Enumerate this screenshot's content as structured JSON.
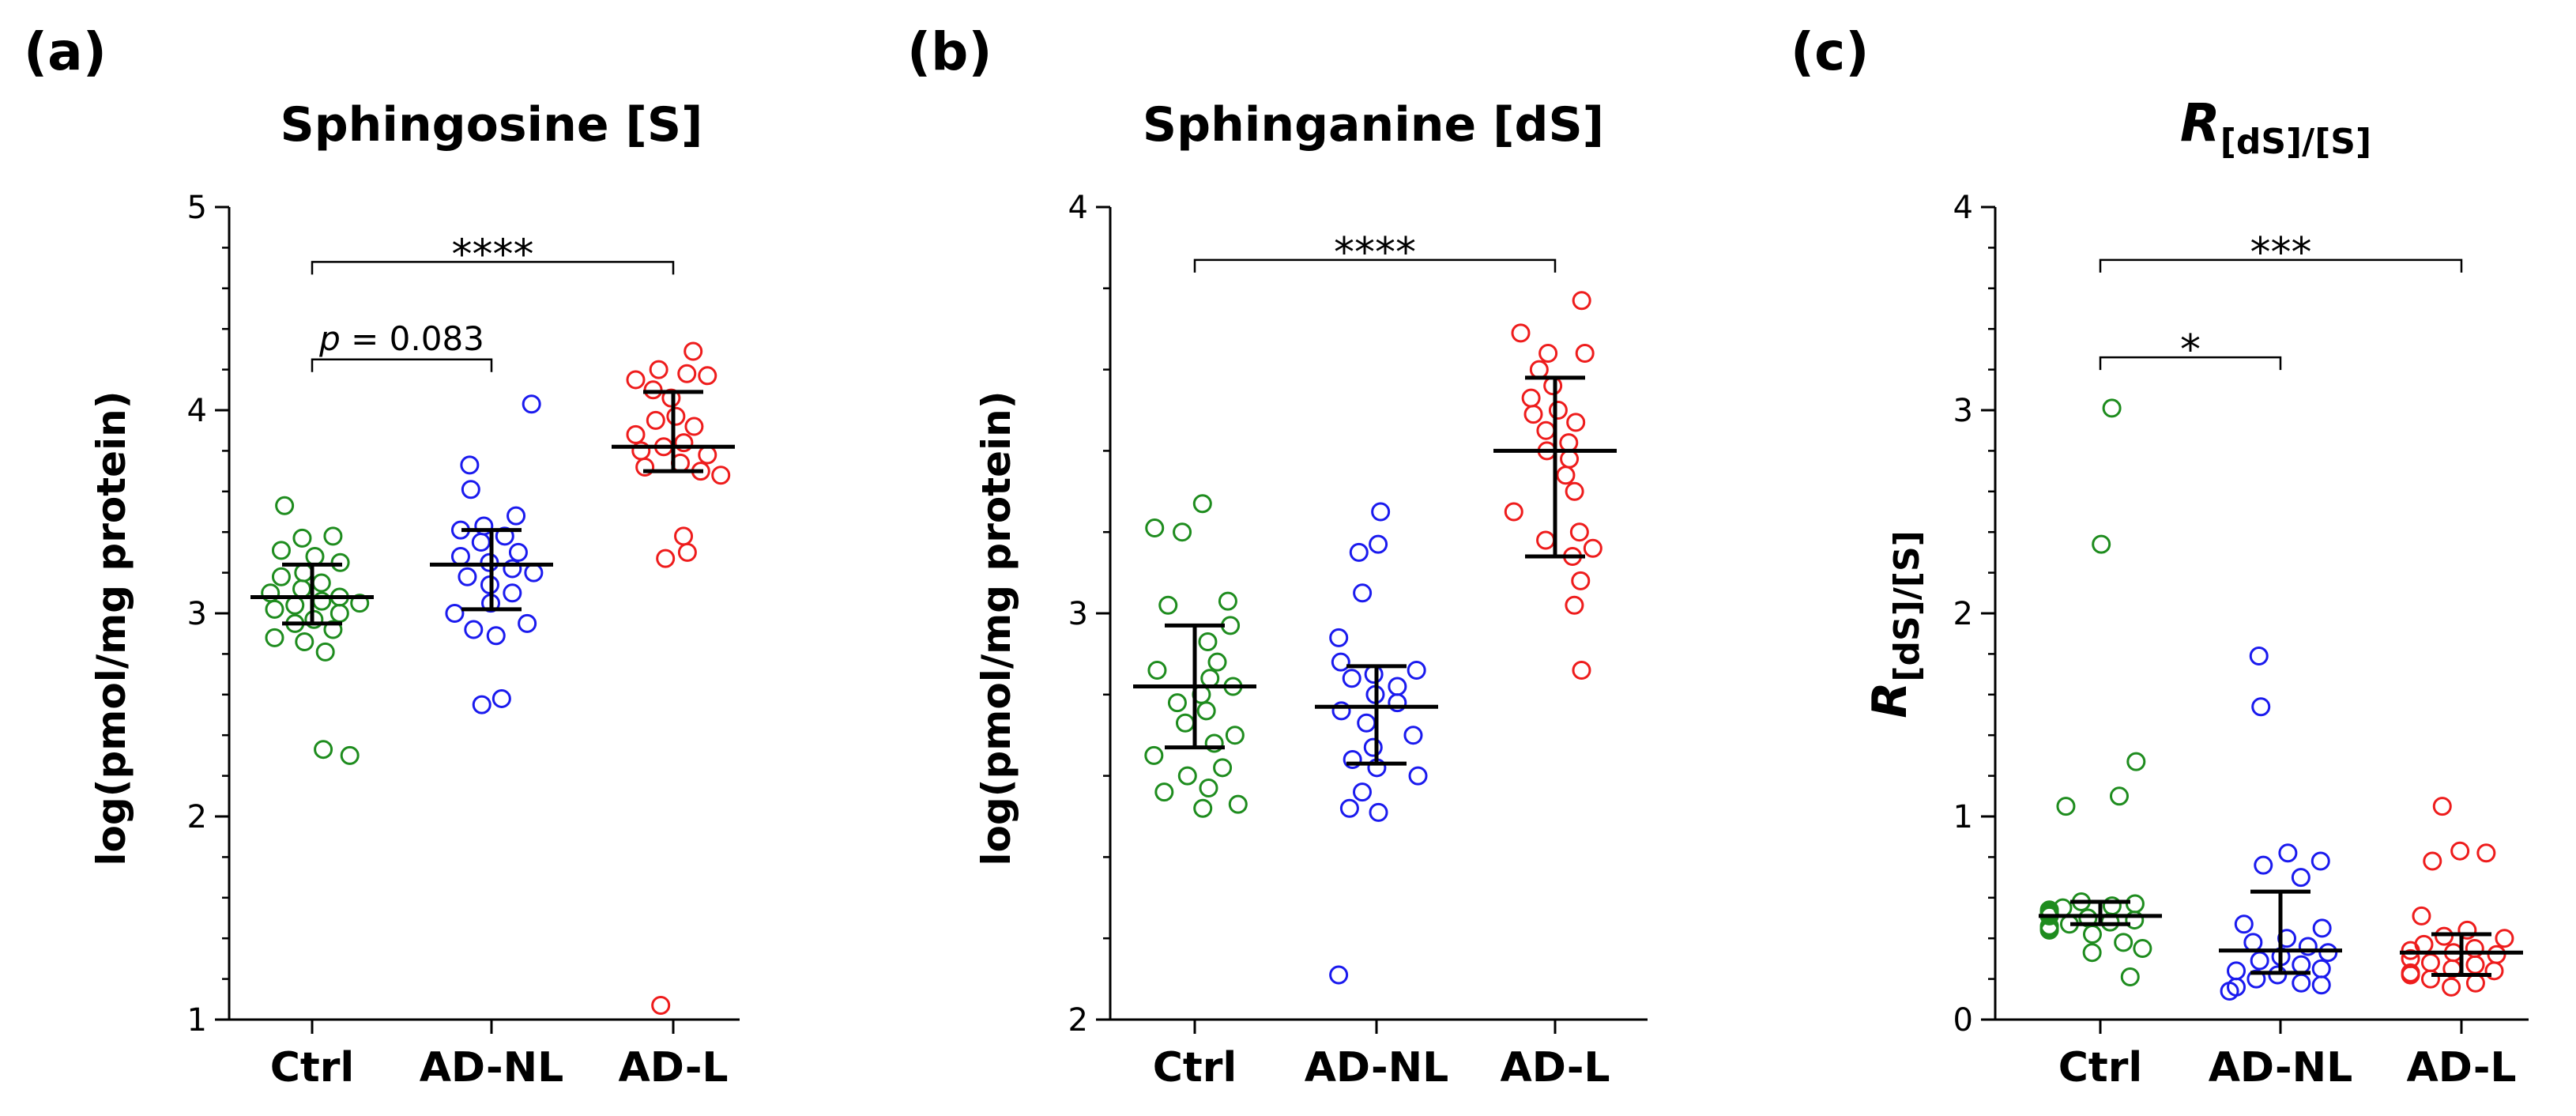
{
  "colors": {
    "ctrl": "#1e8c1e",
    "adnl": "#1a1aee",
    "adl": "#ee1c1c",
    "axis": "#000000"
  },
  "chart_data": [
    {
      "type": "scatter",
      "panel_label": "(a)",
      "title": "Sphingosine [S]",
      "ylabel": "log(pmol/mg protein)",
      "ylim": [
        1,
        5
      ],
      "yticks": [
        1,
        2,
        3,
        4,
        5
      ],
      "categories": [
        "Ctrl",
        "AD-NL",
        "AD-L"
      ],
      "series": [
        {
          "name": "Ctrl",
          "color": "ctrl",
          "values": [
            3.53,
            3.38,
            3.37,
            3.31,
            3.28,
            3.25,
            3.2,
            3.18,
            3.15,
            3.12,
            3.1,
            3.08,
            3.06,
            3.05,
            3.04,
            3.02,
            3.0,
            2.97,
            2.95,
            2.92,
            2.88,
            2.86,
            2.81,
            2.33,
            2.3
          ],
          "median": 3.08,
          "q1": 2.95,
          "q3": 3.24
        },
        {
          "name": "AD-NL",
          "color": "adnl",
          "values": [
            4.03,
            3.73,
            3.61,
            3.48,
            3.43,
            3.41,
            3.38,
            3.35,
            3.3,
            3.28,
            3.25,
            3.22,
            3.2,
            3.18,
            3.14,
            3.1,
            3.05,
            3.0,
            2.95,
            2.92,
            2.89,
            2.58,
            2.55
          ],
          "median": 3.24,
          "q1": 3.02,
          "q3": 3.41
        },
        {
          "name": "AD-L",
          "color": "adl",
          "values": [
            4.29,
            4.2,
            4.18,
            4.17,
            4.15,
            4.1,
            4.06,
            3.97,
            3.95,
            3.92,
            3.88,
            3.84,
            3.82,
            3.8,
            3.78,
            3.74,
            3.72,
            3.7,
            3.68,
            3.38,
            3.3,
            3.27,
            1.07
          ],
          "median": 3.82,
          "q1": 3.7,
          "q3": 4.09
        }
      ],
      "brackets": [
        {
          "from": 0,
          "to": 2,
          "y": 4.73,
          "label": "****",
          "italic_p": false
        },
        {
          "from": 0,
          "to": 1,
          "y": 4.25,
          "label": "p = 0.083",
          "italic_p": true
        }
      ]
    },
    {
      "type": "scatter",
      "panel_label": "(b)",
      "title": "Sphinganine [dS]",
      "ylabel": "log(pmol/mg protein)",
      "ylim": [
        2,
        4
      ],
      "yticks": [
        2,
        3,
        4
      ],
      "categories": [
        "Ctrl",
        "AD-NL",
        "AD-L"
      ],
      "series": [
        {
          "name": "Ctrl",
          "color": "ctrl",
          "values": [
            3.27,
            3.21,
            3.2,
            3.03,
            3.02,
            2.97,
            2.93,
            2.88,
            2.86,
            2.84,
            2.82,
            2.8,
            2.78,
            2.76,
            2.73,
            2.7,
            2.68,
            2.65,
            2.62,
            2.6,
            2.57,
            2.56,
            2.53,
            2.52
          ],
          "median": 2.82,
          "q1": 2.67,
          "q3": 2.97
        },
        {
          "name": "AD-NL",
          "color": "adnl",
          "values": [
            3.25,
            3.17,
            3.15,
            3.05,
            2.94,
            2.88,
            2.86,
            2.85,
            2.84,
            2.82,
            2.8,
            2.78,
            2.76,
            2.73,
            2.7,
            2.67,
            2.64,
            2.62,
            2.6,
            2.56,
            2.52,
            2.51,
            2.11
          ],
          "median": 2.77,
          "q1": 2.63,
          "q3": 2.87
        },
        {
          "name": "AD-L",
          "color": "adl",
          "values": [
            3.77,
            3.69,
            3.64,
            3.64,
            3.6,
            3.56,
            3.53,
            3.5,
            3.49,
            3.47,
            3.45,
            3.42,
            3.4,
            3.38,
            3.34,
            3.3,
            3.25,
            3.2,
            3.18,
            3.16,
            3.14,
            3.08,
            3.02,
            2.86
          ],
          "median": 3.4,
          "q1": 3.14,
          "q3": 3.58
        }
      ],
      "brackets": [
        {
          "from": 0,
          "to": 2,
          "y": 3.87,
          "label": "****",
          "italic_p": false
        }
      ]
    },
    {
      "type": "scatter",
      "panel_label": "(c)",
      "title": "R",
      "title_sub": "[dS]/[S]",
      "ylabel": "R",
      "ylabel_sub": "[dS]/[S]",
      "ylim": [
        0,
        4
      ],
      "yticks": [
        0,
        1,
        2,
        3,
        4
      ],
      "categories": [
        "Ctrl",
        "AD-NL",
        "AD-L"
      ],
      "series": [
        {
          "name": "Ctrl",
          "color": "ctrl",
          "values": [
            3.01,
            2.34,
            1.27,
            1.1,
            1.05,
            0.58,
            0.57,
            0.56,
            0.55,
            0.54,
            0.53,
            0.52,
            0.51,
            0.5,
            0.49,
            0.48,
            0.47,
            0.46,
            0.45,
            0.44,
            0.42,
            0.38,
            0.35,
            0.33,
            0.21
          ],
          "median": 0.51,
          "q1": 0.47,
          "q3": 0.58
        },
        {
          "name": "AD-NL",
          "color": "adnl",
          "values": [
            1.79,
            1.54,
            0.82,
            0.78,
            0.76,
            0.7,
            0.47,
            0.45,
            0.4,
            0.38,
            0.36,
            0.33,
            0.31,
            0.29,
            0.27,
            0.25,
            0.24,
            0.22,
            0.2,
            0.18,
            0.17,
            0.16,
            0.14
          ],
          "median": 0.34,
          "q1": 0.23,
          "q3": 0.63
        },
        {
          "name": "AD-L",
          "color": "adl",
          "values": [
            1.05,
            0.83,
            0.82,
            0.78,
            0.51,
            0.44,
            0.41,
            0.4,
            0.37,
            0.35,
            0.34,
            0.33,
            0.32,
            0.3,
            0.28,
            0.27,
            0.25,
            0.24,
            0.23,
            0.22,
            0.2,
            0.18,
            0.16
          ],
          "median": 0.33,
          "q1": 0.22,
          "q3": 0.42
        }
      ],
      "brackets": [
        {
          "from": 0,
          "to": 2,
          "y": 3.74,
          "label": "***",
          "italic_p": false
        },
        {
          "from": 0,
          "to": 1,
          "y": 3.26,
          "label": "*",
          "italic_p": false
        }
      ]
    }
  ]
}
